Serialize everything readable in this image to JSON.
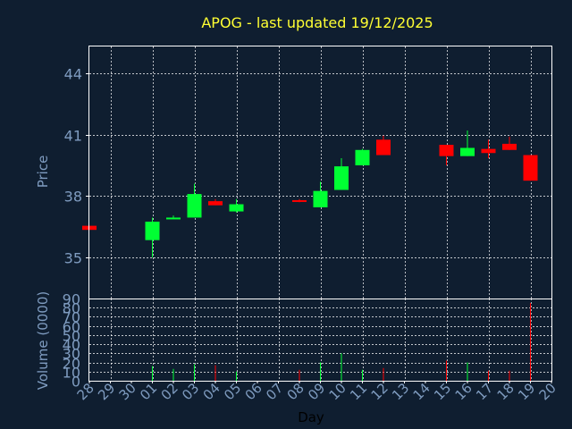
{
  "chart_data": {
    "type": "candlestick",
    "title": "APOG - last updated 19/12/2025",
    "xlabel": "Day",
    "ylabel_price": "Price",
    "ylabel_volume": "Volume (0000)",
    "x_labels": [
      "28",
      "29",
      "30",
      "01",
      "02",
      "03",
      "04",
      "05",
      "06",
      "07",
      "08",
      "09",
      "10",
      "11",
      "12",
      "13",
      "14",
      "15",
      "16",
      "17",
      "18",
      "19",
      "20"
    ],
    "price_ylim": [
      33.0,
      45.3
    ],
    "price_ticks": [
      35,
      38,
      41,
      44
    ],
    "volume_ylim": [
      0,
      90
    ],
    "volume_ticks": [
      0,
      10,
      20,
      30,
      40,
      50,
      60,
      70,
      80,
      90
    ],
    "grid": true,
    "colors": {
      "background": "#0f1e30",
      "axis": "#ffffff",
      "grid": "#ffffff",
      "tick_label": "#7f9cc0",
      "title": "#ffff33",
      "up": "#00ff33",
      "down": "#ff0000"
    },
    "candles": [
      {
        "x": 0,
        "open": 36.55,
        "close": 36.35,
        "high": 36.55,
        "low": 36.35,
        "volume": 0
      },
      {
        "x": 3,
        "open": 35.85,
        "close": 36.75,
        "high": 36.95,
        "low": 35.0,
        "volume": 16
      },
      {
        "x": 4,
        "open": 36.9,
        "close": 36.95,
        "high": 37.05,
        "low": 36.9,
        "volume": 13
      },
      {
        "x": 5,
        "open": 36.95,
        "close": 38.1,
        "high": 38.6,
        "low": 36.95,
        "volume": 18
      },
      {
        "x": 6,
        "open": 37.75,
        "close": 37.55,
        "high": 37.85,
        "low": 37.55,
        "volume": 17
      },
      {
        "x": 7,
        "open": 37.25,
        "close": 37.6,
        "high": 37.85,
        "low": 37.2,
        "volume": 10
      },
      {
        "x": 10,
        "open": 37.8,
        "close": 37.75,
        "high": 37.85,
        "low": 37.7,
        "volume": 12
      },
      {
        "x": 11,
        "open": 37.45,
        "close": 38.25,
        "high": 38.7,
        "low": 37.45,
        "volume": 20
      },
      {
        "x": 12,
        "open": 38.3,
        "close": 39.45,
        "high": 39.85,
        "low": 38.3,
        "volume": 30
      },
      {
        "x": 13,
        "open": 39.5,
        "close": 40.25,
        "high": 40.3,
        "low": 39.5,
        "volume": 12
      },
      {
        "x": 14,
        "open": 40.75,
        "close": 40.0,
        "high": 40.95,
        "low": 40.0,
        "volume": 14
      },
      {
        "x": 17,
        "open": 40.5,
        "close": 39.95,
        "high": 40.5,
        "low": 39.5,
        "volume": 22
      },
      {
        "x": 18,
        "open": 39.95,
        "close": 40.35,
        "high": 41.2,
        "low": 39.95,
        "volume": 20
      },
      {
        "x": 19,
        "open": 40.3,
        "close": 40.1,
        "high": 40.75,
        "low": 39.85,
        "volume": 11
      },
      {
        "x": 20,
        "open": 40.55,
        "close": 40.25,
        "high": 40.9,
        "low": 40.25,
        "volume": 11
      },
      {
        "x": 21,
        "open": 40.0,
        "close": 38.75,
        "high": 40.0,
        "low": 38.75,
        "volume": 85
      }
    ]
  }
}
